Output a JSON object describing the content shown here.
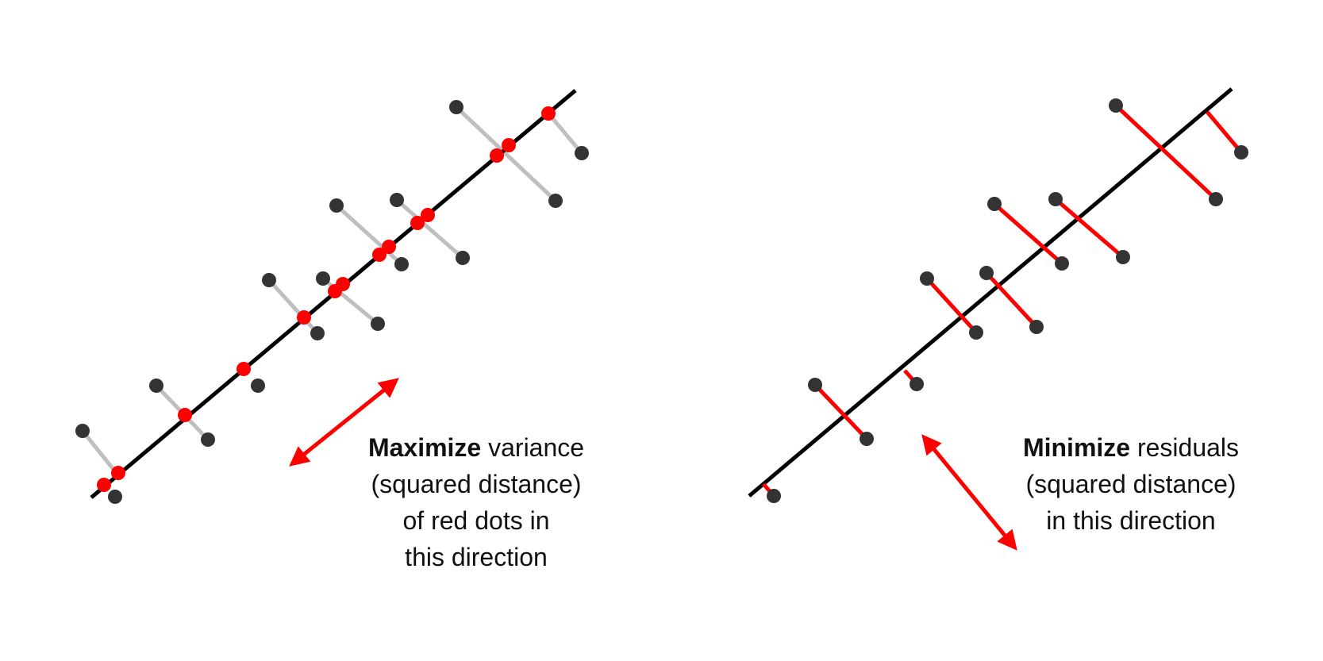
{
  "colors": {
    "axis_line": "#000000",
    "data_point": "#333333",
    "projection_segment_left": "#bfbfbf",
    "projected_point": "#ff0000",
    "residual_segment": "#ff0000",
    "arrow": "#ff0000",
    "text": "#111111"
  },
  "icons": {
    "direction_arrow": "double-headed-arrow"
  },
  "left_panel": {
    "caption": {
      "bold_word": "Maximize",
      "line1_rest": " variance",
      "line2": "(squared distance)",
      "line3": "of red dots in",
      "line4": "this direction"
    }
  },
  "right_panel": {
    "caption": {
      "bold_word": "Minimize",
      "line1_rest": " residuals",
      "line2": "(squared distance)",
      "line3": "in this direction"
    }
  }
}
